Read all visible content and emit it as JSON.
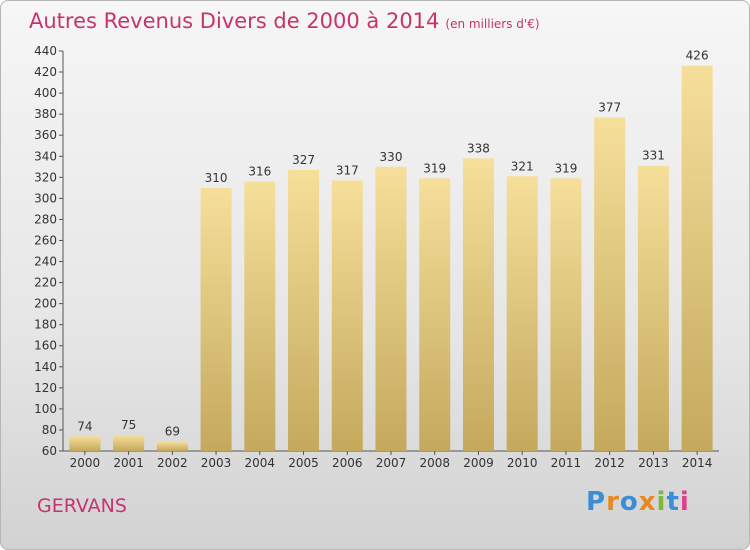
{
  "header": {
    "title": "Autres Revenus Divers de 2000 à 2014",
    "unit": "(en milliers d'€)"
  },
  "footer": {
    "place": "GERVANS",
    "logo": "Proxiti"
  },
  "colors": {
    "title": "#c8336b",
    "bar_top": "#f6df9a",
    "bar_bottom": "#c4a95d",
    "logo_letters": [
      "#3a8ed8",
      "#e7891f",
      "#3a8ed8",
      "#e7891f",
      "#7cb83a",
      "#3a8ed8",
      "#e0408a"
    ]
  },
  "chart_data": {
    "type": "bar",
    "title": "Autres Revenus Divers de 2000 à 2014",
    "subtitle": "(en milliers d'€)",
    "categories": [
      "2000",
      "2001",
      "2002",
      "2003",
      "2004",
      "2005",
      "2006",
      "2007",
      "2008",
      "2009",
      "2010",
      "2011",
      "2012",
      "2013",
      "2014"
    ],
    "values": [
      74,
      75,
      69,
      310,
      316,
      327,
      317,
      330,
      319,
      338,
      321,
      319,
      377,
      331,
      426
    ],
    "ylim": [
      60,
      440
    ],
    "yticks": [
      60,
      80,
      100,
      120,
      140,
      160,
      180,
      200,
      220,
      240,
      260,
      280,
      300,
      320,
      340,
      360,
      380,
      400,
      420,
      440
    ],
    "grid": false,
    "data_labels": true
  }
}
